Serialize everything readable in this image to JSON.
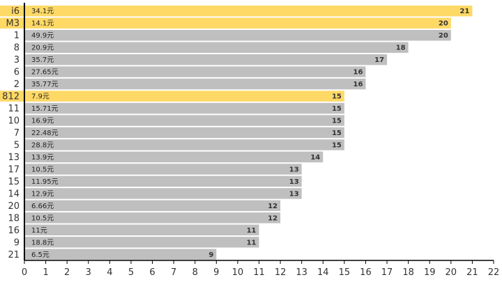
{
  "chart_data": {
    "type": "bar",
    "orientation": "horizontal",
    "title": "",
    "xlabel": "",
    "ylabel": "",
    "xlim": [
      0,
      22
    ],
    "x_ticks": [
      "0",
      "1",
      "2",
      "3",
      "4",
      "5",
      "6",
      "7",
      "8",
      "9",
      "10",
      "11",
      "12",
      "13",
      "14",
      "15",
      "16",
      "17",
      "18",
      "19",
      "20",
      "21",
      "22"
    ],
    "grid": false,
    "colors": {
      "highlight": "#FFD966",
      "normal": "#BFBFBF",
      "axis": "#000000"
    },
    "categories": [
      "i6",
      "M3",
      "1",
      "8",
      "3",
      "6",
      "2",
      "812",
      "11",
      "10",
      "7",
      "5",
      "13",
      "17",
      "15",
      "14",
      "20",
      "18",
      "16",
      "9",
      "21"
    ],
    "values": [
      21,
      20,
      20,
      18,
      17,
      16,
      16,
      15,
      15,
      15,
      15,
      15,
      14,
      13,
      13,
      13,
      12,
      12,
      11,
      11,
      9
    ],
    "price_labels": [
      "34.1元",
      "14.1元",
      "49.9元",
      "20.9元",
      "35.7元",
      "27.65元",
      "35.77元",
      "7.9元",
      "15.71元",
      "16.9元",
      "22.48元",
      "28.8元",
      "13.9元",
      "10.5元",
      "11.95元",
      "12.9元",
      "6.66元",
      "10.5元",
      "11元",
      "18.8元",
      "6.5元"
    ],
    "highlighted": [
      true,
      true,
      false,
      false,
      false,
      false,
      false,
      true,
      false,
      false,
      false,
      false,
      false,
      false,
      false,
      false,
      false,
      false,
      false,
      false,
      false
    ]
  }
}
